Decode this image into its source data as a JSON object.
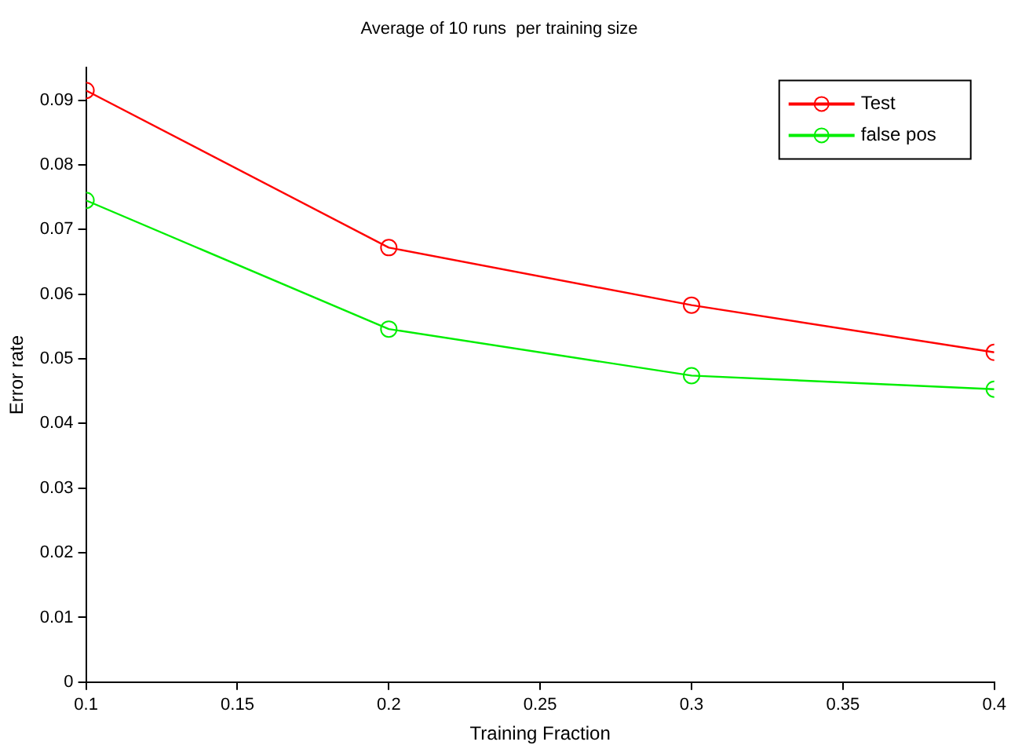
{
  "chart_data": {
    "type": "line",
    "title": "Average of 10 runs  per training size",
    "xlabel": "Training Fraction",
    "ylabel": "Error rate",
    "x": [
      0.1,
      0.2,
      0.3,
      0.4
    ],
    "series": [
      {
        "name": "Test",
        "color": "#ff0000",
        "values": [
          0.0915,
          0.0672,
          0.0583,
          0.051
        ]
      },
      {
        "name": "false pos",
        "color": "#00ee00",
        "values": [
          0.0745,
          0.0546,
          0.0474,
          0.0453
        ]
      }
    ],
    "xlim": [
      0.1,
      0.4
    ],
    "xticks": [
      0.1,
      0.15,
      0.2,
      0.25,
      0.3,
      0.35,
      0.4
    ],
    "ylim": [
      0,
      0.095
    ],
    "yticks": [
      0,
      0.01,
      0.02,
      0.03,
      0.04,
      0.05,
      0.06,
      0.07,
      0.08,
      0.09
    ],
    "grid": false,
    "legend": "top right",
    "marker": "circle",
    "line_style": "solid"
  }
}
